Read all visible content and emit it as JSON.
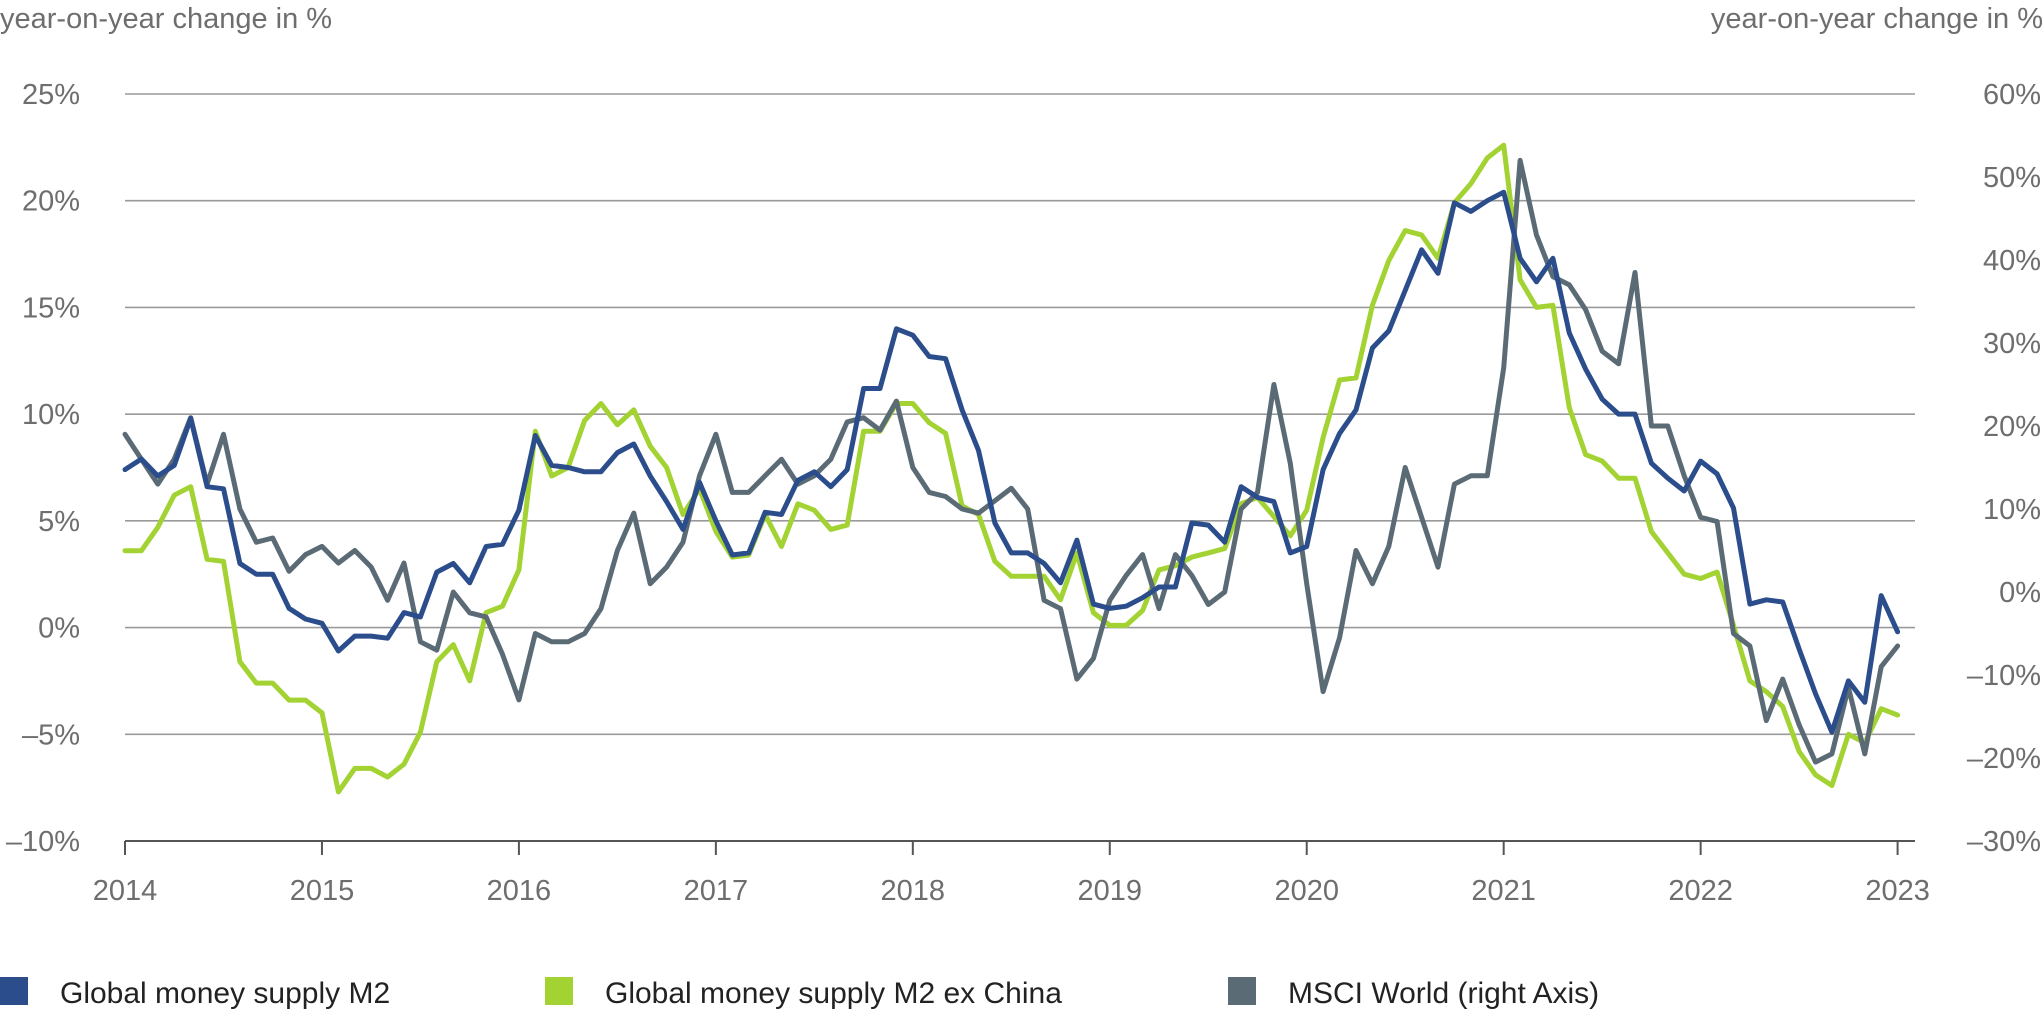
{
  "chart_data": {
    "type": "line",
    "title": "",
    "y_left_label": "year-on-year change in %",
    "y_right_label": "year-on-year change in %",
    "y_left": {
      "min": -10,
      "max": 25,
      "ticks": [
        25,
        20,
        15,
        10,
        5,
        0,
        -5,
        -10
      ],
      "tick_labels": [
        "25%",
        "20%",
        "15%",
        "10%",
        "5%",
        "0%",
        "–5%",
        "–10%"
      ]
    },
    "y_right": {
      "min": -30,
      "max": 60,
      "ticks": [
        60,
        50,
        40,
        30,
        20,
        10,
        0,
        -10,
        -20,
        -30
      ],
      "tick_labels": [
        "60%",
        "50%",
        "40%",
        "30%",
        "20%",
        "10%",
        "0%",
        "–10%",
        "–20%",
        "–30%"
      ]
    },
    "x": {
      "min": 2014,
      "max": 2023.0833,
      "ticks": [
        2014,
        2015,
        2016,
        2017,
        2018,
        2019,
        2020,
        2021,
        2022,
        2023
      ],
      "tick_labels": [
        "2014",
        "2015",
        "2016",
        "2017",
        "2018",
        "2019",
        "2020",
        "2021",
        "2022",
        "2023"
      ]
    },
    "series": [
      {
        "name": "Global money supply M2",
        "axis": "left",
        "color": "#2b4d8c",
        "start": 2014,
        "step": 0.0833333,
        "values": [
          7.4,
          7.9,
          7.1,
          7.6,
          9.8,
          6.6,
          6.5,
          3.0,
          2.5,
          2.5,
          0.9,
          0.4,
          0.2,
          -1.1,
          -0.4,
          -0.4,
          -0.5,
          0.7,
          0.5,
          2.6,
          3.0,
          2.1,
          3.8,
          3.9,
          5.5,
          9.0,
          7.6,
          7.5,
          7.3,
          7.3,
          8.2,
          8.6,
          7.1,
          5.9,
          4.6,
          6.8,
          5.0,
          3.4,
          3.5,
          5.4,
          5.3,
          6.9,
          7.3,
          6.6,
          7.4,
          11.2,
          11.2,
          14.0,
          13.7,
          12.7,
          12.6,
          10.2,
          8.3,
          4.9,
          3.5,
          3.5,
          3.0,
          2.1,
          4.1,
          1.1,
          0.9,
          1.0,
          1.4,
          1.9,
          1.9,
          4.9,
          4.8,
          4.0,
          6.6,
          6.1,
          5.9,
          3.5,
          3.8,
          7.4,
          9.1,
          10.2,
          13.1,
          13.9,
          15.8,
          17.7,
          16.6,
          19.9,
          19.5,
          20.0,
          20.4,
          17.3,
          16.2,
          17.3,
          13.8,
          12.1,
          10.7,
          10.0,
          10.0,
          7.7,
          7.0,
          6.4,
          7.8,
          7.2,
          5.6,
          1.1,
          1.3,
          1.2,
          -1.0,
          -3.1,
          -4.9,
          -2.5,
          -3.5,
          1.5,
          -0.2
        ]
      },
      {
        "name": "Global money supply M2 ex China",
        "axis": "left",
        "color": "#a3d233",
        "start": 2014,
        "step": 0.0833333,
        "values": [
          3.6,
          3.6,
          4.7,
          6.2,
          6.6,
          3.2,
          3.1,
          -1.6,
          -2.6,
          -2.6,
          -3.4,
          -3.4,
          -4.0,
          -7.7,
          -6.6,
          -6.6,
          -7.0,
          -6.4,
          -4.9,
          -1.6,
          -0.8,
          -2.5,
          0.7,
          1.0,
          2.7,
          9.2,
          7.1,
          7.5,
          9.7,
          10.5,
          9.5,
          10.2,
          8.5,
          7.5,
          5.3,
          6.5,
          4.5,
          3.3,
          3.4,
          5.3,
          3.8,
          5.8,
          5.5,
          4.6,
          4.8,
          9.2,
          9.2,
          10.5,
          10.5,
          9.6,
          9.1,
          5.7,
          5.3,
          3.1,
          2.4,
          2.4,
          2.4,
          1.3,
          3.5,
          0.7,
          0.1,
          0.1,
          0.8,
          2.7,
          2.9,
          3.3,
          3.5,
          3.7,
          5.8,
          6.1,
          5.2,
          4.3,
          5.5,
          8.9,
          11.6,
          11.7,
          15.1,
          17.2,
          18.6,
          18.4,
          17.3,
          19.9,
          20.8,
          22.0,
          22.6,
          16.3,
          15.0,
          15.1,
          10.3,
          8.1,
          7.8,
          7.0,
          7.0,
          4.5,
          3.5,
          2.5,
          2.3,
          2.6,
          0.1,
          -2.5,
          -3.0,
          -3.7,
          -5.8,
          -6.9,
          -7.4,
          -5.0,
          -5.4,
          -3.8,
          -4.1
        ]
      },
      {
        "name": "MSCI World (right Axis)",
        "axis": "right",
        "color": "#5b6b75",
        "start": 2014,
        "step": 0.0833333,
        "values": [
          19,
          16,
          13,
          16,
          21,
          13,
          19,
          10,
          6,
          6.5,
          2.5,
          4.5,
          5.5,
          3.5,
          5,
          3,
          -1,
          3.5,
          -6,
          -7,
          0,
          -2.5,
          -3,
          -7.5,
          -13,
          -5,
          -6,
          -6,
          -5,
          -2,
          5,
          9.5,
          1,
          3,
          6,
          14,
          19,
          12,
          12,
          14,
          16,
          13,
          14,
          16,
          20.5,
          21,
          19.5,
          23,
          15,
          12,
          11.5,
          10,
          9.5,
          11,
          12.5,
          10,
          -1,
          -2,
          -10.5,
          -8,
          -1,
          2,
          4.5,
          -2,
          4.5,
          2,
          -1.5,
          0,
          10,
          12,
          25,
          15.5,
          1,
          -12,
          -5.5,
          5,
          1,
          5.5,
          15,
          9,
          3,
          13,
          14,
          14,
          27,
          52,
          43,
          38,
          37,
          34,
          29,
          27.5,
          38.5,
          20,
          20,
          14,
          9,
          8.5,
          -5,
          -6.5,
          -15.5,
          -10.5,
          -16,
          -20.5,
          -19.5,
          -11.5,
          -19.5,
          -9,
          -6.5
        ]
      }
    ]
  },
  "legend": [
    {
      "label": "Global money supply M2",
      "color": "#2b4d8c"
    },
    {
      "label": "Global money supply M2 ex China",
      "color": "#a3d233"
    },
    {
      "label": "MSCI World (right Axis)",
      "color": "#5b6b75"
    }
  ]
}
